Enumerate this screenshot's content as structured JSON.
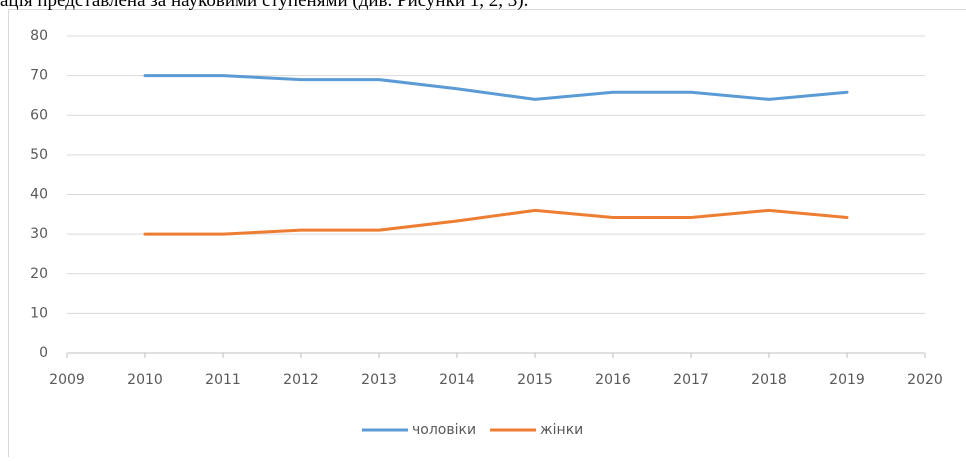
{
  "caption": "ація представлена за науковими ступенями (див. Рисунки 1, 2, 3).",
  "chart_data": {
    "type": "line",
    "x": [
      2010,
      2011,
      2012,
      2013,
      2014,
      2015,
      2016,
      2017,
      2018,
      2019
    ],
    "series": [
      {
        "name": "чоловіки",
        "color": "#5b9bd5",
        "values": [
          70,
          70,
          69,
          69,
          66.7,
          64,
          65.8,
          65.8,
          64,
          65.8
        ]
      },
      {
        "name": "жінки",
        "color": "#ed7d31",
        "values": [
          30,
          30,
          31,
          31,
          33.3,
          36,
          34.2,
          34.2,
          36,
          34.2
        ]
      }
    ],
    "xlim": [
      2009,
      2020
    ],
    "xticks": [
      2009,
      2010,
      2011,
      2012,
      2013,
      2014,
      2015,
      2016,
      2017,
      2018,
      2019,
      2020
    ],
    "ylim": [
      0,
      80
    ],
    "yticks": [
      0,
      10,
      20,
      30,
      40,
      50,
      60,
      70,
      80
    ],
    "grid": true,
    "legend": "bottom"
  }
}
